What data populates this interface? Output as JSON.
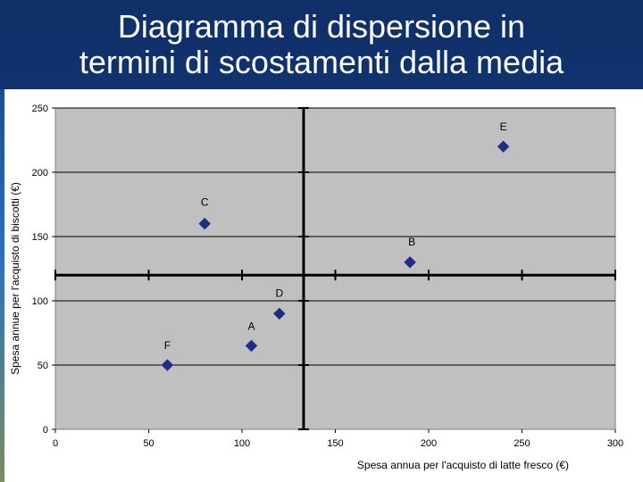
{
  "slide": {
    "title": "Diagramma di dispersione in\ntermini di scostamenti dalla media"
  },
  "chart_data": {
    "type": "scatter",
    "title": "",
    "xlabel": "Spesa annua per l'acquisto di latte fresco (€)",
    "ylabel": "Spesa annue per l'acquisto di biscotti (€)",
    "xlim": [
      0,
      300
    ],
    "ylim": [
      0,
      250
    ],
    "x_ticks": [
      0,
      50,
      100,
      150,
      200,
      250,
      300
    ],
    "y_ticks": [
      0,
      50,
      100,
      150,
      200,
      250
    ],
    "grid": true,
    "reference_lines": {
      "x": 133,
      "y": 120
    },
    "points": [
      {
        "label": "A",
        "x": 105,
        "y": 65
      },
      {
        "label": "B",
        "x": 190,
        "y": 130
      },
      {
        "label": "C",
        "x": 80,
        "y": 160
      },
      {
        "label": "D",
        "x": 120,
        "y": 90
      },
      {
        "label": "E",
        "x": 240,
        "y": 220
      },
      {
        "label": "F",
        "x": 60,
        "y": 50
      }
    ],
    "colors": {
      "plot_background": "#c0c0c0",
      "grid": "#000000",
      "reference_lines": "#000000",
      "marker": "#1f2d86"
    }
  }
}
